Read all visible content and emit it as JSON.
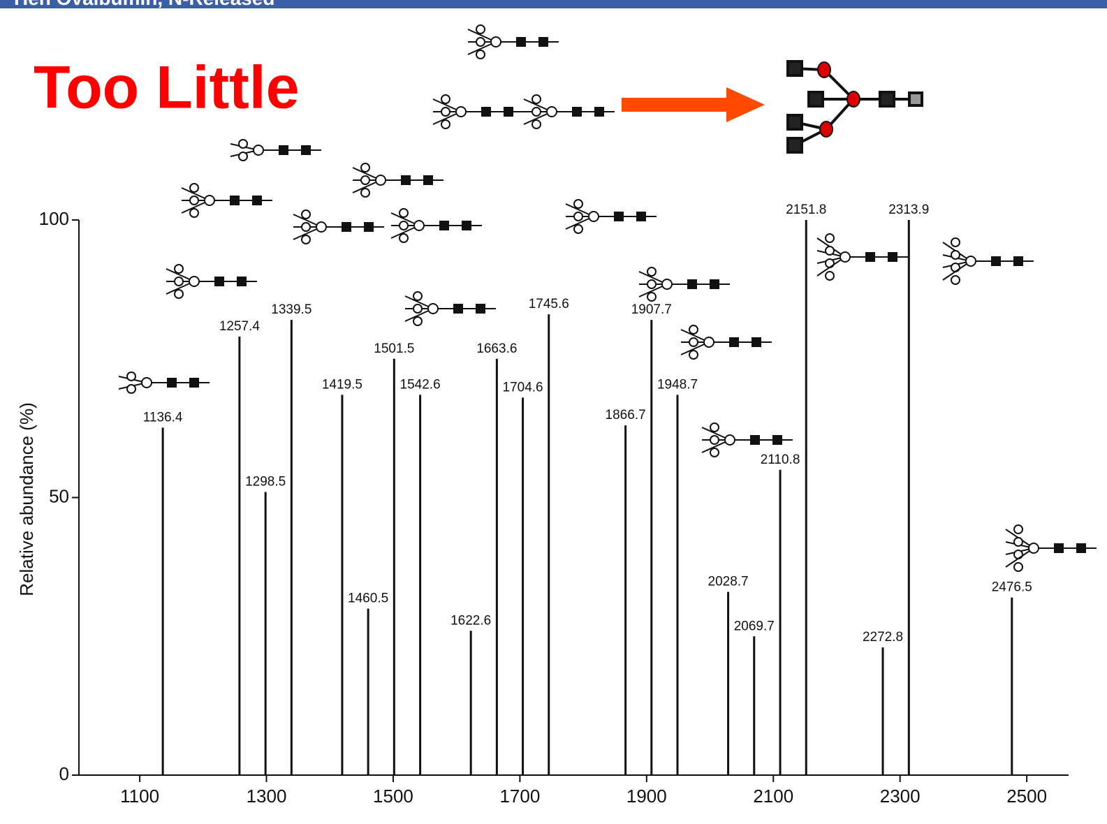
{
  "header": {
    "title": "Hen Ovalbumin, N-Released"
  },
  "headline": "Too Little",
  "chart_data": {
    "type": "stem",
    "ylabel": "Relative abundance (%)",
    "x": [
      1136.4,
      1257.4,
      1298.5,
      1339.5,
      1419.5,
      1460.5,
      1501.5,
      1542.6,
      1622.6,
      1663.6,
      1704.6,
      1745.6,
      1866.7,
      1907.7,
      1948.7,
      2028.7,
      2069.7,
      2110.8,
      2151.8,
      2272.8,
      2313.9,
      2476.5
    ],
    "values": [
      62.6,
      79,
      51,
      82,
      68.5,
      30,
      75,
      68.5,
      26,
      75,
      68,
      83,
      63,
      82,
      68.5,
      33,
      25,
      55,
      100,
      23,
      100,
      32
    ],
    "color": "#111111",
    "xlim": [
      1004,
      2566
    ],
    "xticks": [
      1100,
      1300,
      1500,
      1700,
      1900,
      2100,
      2300,
      2500
    ],
    "ylim": [
      0,
      100
    ],
    "yticks": [
      0,
      50,
      100
    ]
  }
}
